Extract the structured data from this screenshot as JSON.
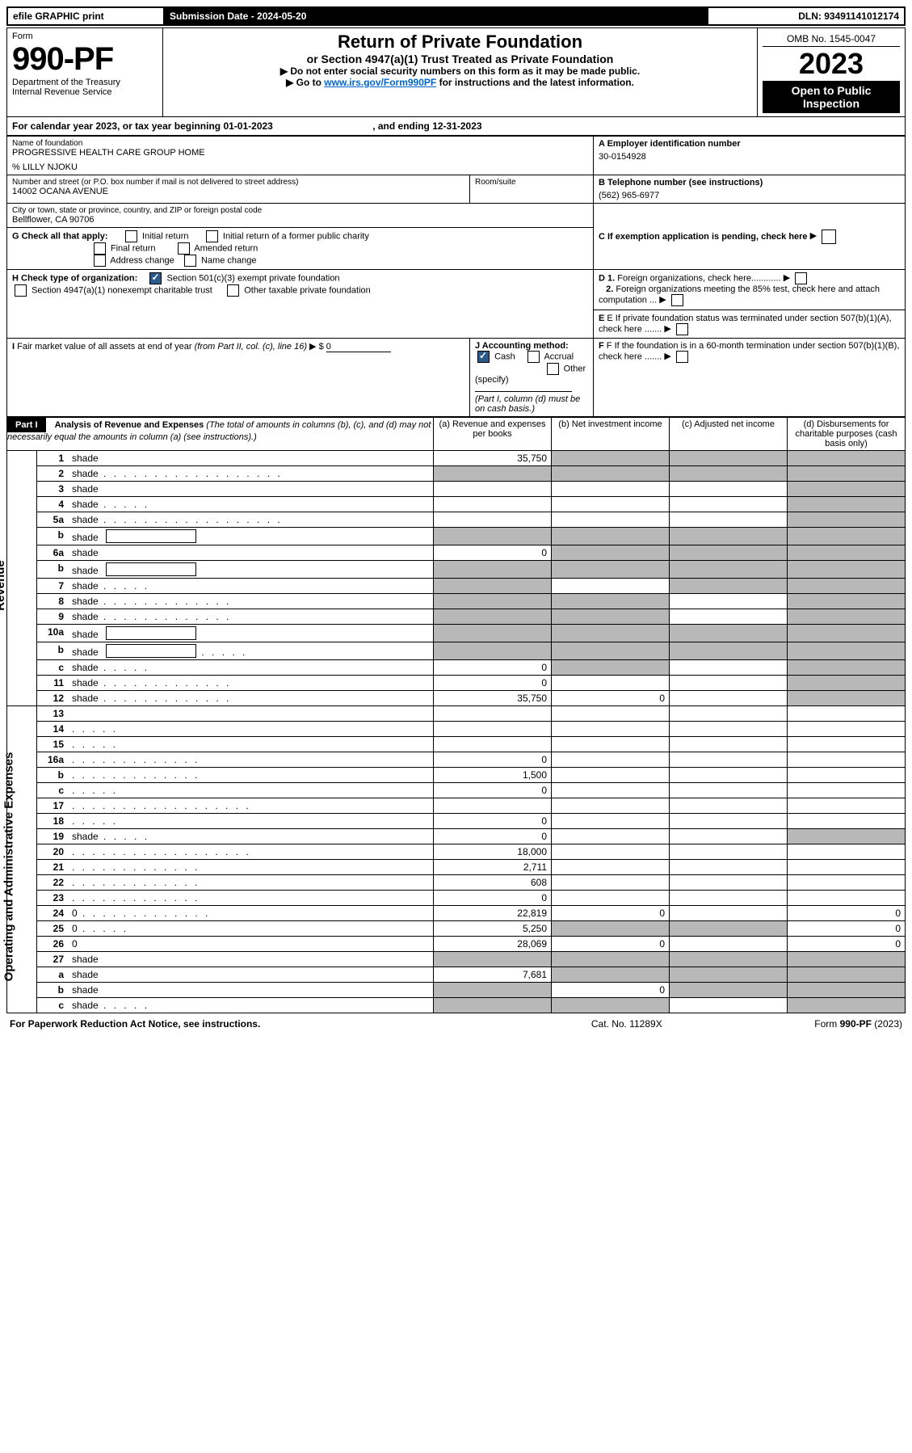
{
  "topbar": {
    "efile": "efile GRAPHIC print",
    "submission": "Submission Date - 2024-05-20",
    "dln": "DLN: 93491141012174"
  },
  "header": {
    "form_label": "Form",
    "form_number": "990-PF",
    "dept": "Department of the Treasury",
    "irs": "Internal Revenue Service",
    "title": "Return of Private Foundation",
    "subtitle": "or Section 4947(a)(1) Trust Treated as Private Foundation",
    "instr1": "Do not enter social security numbers on this form as it may be made public.",
    "instr2_pre": "Go to ",
    "instr2_link": "www.irs.gov/Form990PF",
    "instr2_post": " for instructions and the latest information.",
    "omb": "OMB No. 1545-0047",
    "year": "2023",
    "open_pub": "Open to Public Inspection"
  },
  "cal_year": {
    "text_pre": "For calendar year 2023, or tax year beginning ",
    "begin": "01-01-2023",
    "text_mid": " , and ending ",
    "end": "12-31-2023"
  },
  "info": {
    "name_label": "Name of foundation",
    "name": "PROGRESSIVE HEALTH CARE GROUP HOME",
    "co": "% LILLY NJOKU",
    "addr_label": "Number and street (or P.O. box number if mail is not delivered to street address)",
    "addr": "14002 OCANA AVENUE",
    "room_label": "Room/suite",
    "city_label": "City or town, state or province, country, and ZIP or foreign postal code",
    "city": "Bellflower, CA  90706",
    "a_label": "A Employer identification number",
    "a_val": "30-0154928",
    "b_label": "B Telephone number (see instructions)",
    "b_val": "(562) 965-6977",
    "c_label": "C If exemption application is pending, check here",
    "g_label": "G Check all that apply:",
    "g_initial": "Initial return",
    "g_initial_former": "Initial return of a former public charity",
    "g_final": "Final return",
    "g_amended": "Amended return",
    "g_address": "Address change",
    "g_name": "Name change",
    "d1": "D 1. Foreign organizations, check here............",
    "d2": "2. Foreign organizations meeting the 85% test, check here and attach computation ...",
    "h_label": "H Check type of organization:",
    "h_501c3": "Section 501(c)(3) exempt private foundation",
    "h_4947": "Section 4947(a)(1) nonexempt charitable trust",
    "h_other": "Other taxable private foundation",
    "e_label": "E If private foundation status was terminated under section 507(b)(1)(A), check here .......",
    "i_label": "I Fair market value of all assets at end of year (from Part II, col. (c), line 16)",
    "i_val": "0",
    "j_label": "J Accounting method:",
    "j_cash": "Cash",
    "j_accrual": "Accrual",
    "j_other": "Other (specify)",
    "j_note": "(Part I, column (d) must be on cash basis.)",
    "f_label": "F If the foundation is in a 60-month termination under section 507(b)(1)(B), check here ......."
  },
  "part1": {
    "label": "Part I",
    "heading": "Analysis of Revenue and Expenses",
    "heading_note": "(The total of amounts in columns (b), (c), and (d) may not necessarily equal the amounts in column (a) (see instructions).)",
    "col_a": "(a) Revenue and expenses per books",
    "col_b": "(b) Net investment income",
    "col_c": "(c) Adjusted net income",
    "col_d": "(d) Disbursements for charitable purposes (cash basis only)",
    "side_rev": "Revenue",
    "side_exp": "Operating and Administrative Expenses",
    "rows": [
      {
        "n": "1",
        "d": "shade",
        "a": "35,750",
        "b": "shade",
        "c": "shade"
      },
      {
        "n": "2",
        "d": "shade",
        "dots": "long",
        "a": "shade",
        "b": "shade",
        "c": "shade"
      },
      {
        "n": "3",
        "d": "shade",
        "a": "",
        "b": "",
        "c": ""
      },
      {
        "n": "4",
        "d": "shade",
        "dots": "short",
        "a": "",
        "b": "",
        "c": ""
      },
      {
        "n": "5a",
        "d": "shade",
        "dots": "long",
        "a": "",
        "b": "",
        "c": ""
      },
      {
        "n": "b",
        "d": "shade",
        "inline": true,
        "a": "shade",
        "b": "shade",
        "c": "shade"
      },
      {
        "n": "6a",
        "d": "shade",
        "a": "0",
        "b": "shade",
        "c": "shade"
      },
      {
        "n": "b",
        "d": "shade",
        "inline": true,
        "a": "shade",
        "b": "shade",
        "c": "shade"
      },
      {
        "n": "7",
        "d": "shade",
        "dots": "short",
        "a": "shade",
        "b": "",
        "c": "shade"
      },
      {
        "n": "8",
        "d": "shade",
        "dots": "mid",
        "a": "shade",
        "b": "shade",
        "c": ""
      },
      {
        "n": "9",
        "d": "shade",
        "dots": "mid",
        "a": "shade",
        "b": "shade",
        "c": ""
      },
      {
        "n": "10a",
        "d": "shade",
        "inline": true,
        "a": "shade",
        "b": "shade",
        "c": "shade"
      },
      {
        "n": "b",
        "d": "shade",
        "dots": "short",
        "inline": true,
        "a": "shade",
        "b": "shade",
        "c": "shade"
      },
      {
        "n": "c",
        "d": "shade",
        "dots": "short",
        "a": "0",
        "b": "shade",
        "c": ""
      },
      {
        "n": "11",
        "d": "shade",
        "dots": "mid",
        "a": "0",
        "b": "",
        "c": ""
      },
      {
        "n": "12",
        "d": "shade",
        "dots": "mid",
        "a": "35,750",
        "b": "0",
        "c": ""
      },
      {
        "n": "13",
        "d": "",
        "a": "",
        "b": "",
        "c": ""
      },
      {
        "n": "14",
        "d": "",
        "dots": "short",
        "a": "",
        "b": "",
        "c": ""
      },
      {
        "n": "15",
        "d": "",
        "dots": "short",
        "a": "",
        "b": "",
        "c": ""
      },
      {
        "n": "16a",
        "d": "",
        "dots": "mid",
        "a": "0",
        "b": "",
        "c": ""
      },
      {
        "n": "b",
        "d": "",
        "dots": "mid",
        "a": "1,500",
        "b": "",
        "c": ""
      },
      {
        "n": "c",
        "d": "",
        "dots": "short",
        "a": "0",
        "b": "",
        "c": ""
      },
      {
        "n": "17",
        "d": "",
        "dots": "long",
        "a": "",
        "b": "",
        "c": ""
      },
      {
        "n": "18",
        "d": "",
        "dots": "short",
        "a": "0",
        "b": "",
        "c": ""
      },
      {
        "n": "19",
        "d": "shade",
        "dots": "short",
        "a": "0",
        "b": "",
        "c": ""
      },
      {
        "n": "20",
        "d": "",
        "dots": "long",
        "a": "18,000",
        "b": "",
        "c": ""
      },
      {
        "n": "21",
        "d": "",
        "dots": "mid",
        "a": "2,711",
        "b": "",
        "c": ""
      },
      {
        "n": "22",
        "d": "",
        "dots": "mid",
        "a": "608",
        "b": "",
        "c": ""
      },
      {
        "n": "23",
        "d": "",
        "dots": "mid",
        "a": "0",
        "b": "",
        "c": ""
      },
      {
        "n": "24",
        "d": "0",
        "dots": "mid",
        "a": "22,819",
        "b": "0",
        "c": ""
      },
      {
        "n": "25",
        "d": "0",
        "dots": "short",
        "a": "5,250",
        "b": "shade",
        "c": "shade"
      },
      {
        "n": "26",
        "d": "0",
        "a": "28,069",
        "b": "0",
        "c": ""
      },
      {
        "n": "27",
        "d": "shade",
        "a": "shade",
        "b": "shade",
        "c": "shade"
      },
      {
        "n": "a",
        "d": "shade",
        "a": "7,681",
        "b": "shade",
        "c": "shade"
      },
      {
        "n": "b",
        "d": "shade",
        "a": "shade",
        "b": "0",
        "c": "shade"
      },
      {
        "n": "c",
        "d": "shade",
        "dots": "short",
        "a": "shade",
        "b": "shade",
        "c": ""
      }
    ]
  },
  "footer": {
    "left": "For Paperwork Reduction Act Notice, see instructions.",
    "mid": "Cat. No. 11289X",
    "right": "Form 990-PF (2023)"
  }
}
